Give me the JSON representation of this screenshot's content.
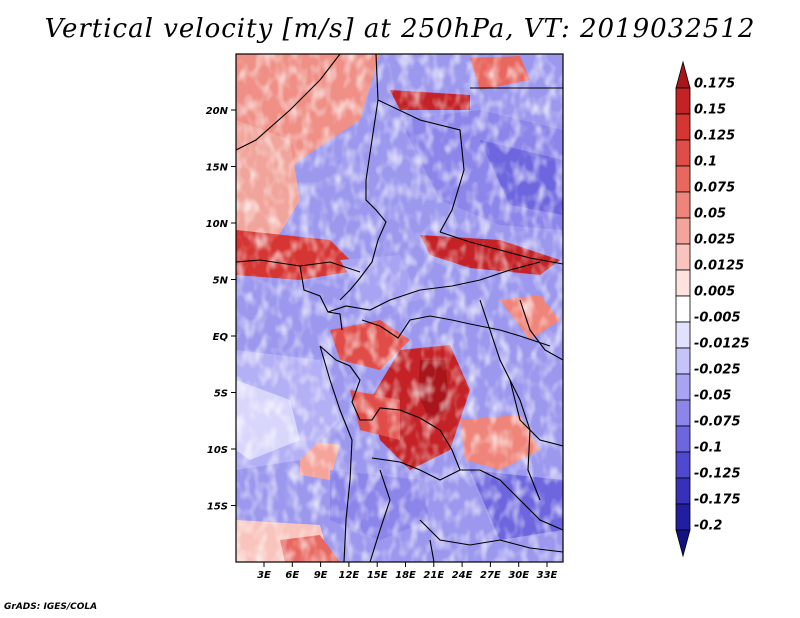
{
  "title": "Vertical velocity [m/s] at 250hPa, VT: 2019032512",
  "credit": "GrADS: IGES/COLA",
  "map": {
    "lat_labels": [
      "20N",
      "15N",
      "10N",
      "5N",
      "EQ",
      "5S",
      "10S",
      "15S"
    ],
    "lon_labels": [
      "3E",
      "6E",
      "9E",
      "12E",
      "15E",
      "18E",
      "21E",
      "24E",
      "27E",
      "30E",
      "33E"
    ]
  },
  "colorbar": {
    "levels": [
      "0.175",
      "0.15",
      "0.125",
      "0.1",
      "0.075",
      "0.05",
      "0.025",
      "0.0125",
      "0.005",
      "-0.005",
      "-0.0125",
      "-0.025",
      "-0.05",
      "-0.075",
      "-0.1",
      "-0.125",
      "-0.175",
      "-0.2"
    ],
    "colors": [
      "#a8161c",
      "#c42226",
      "#d63633",
      "#e04c47",
      "#e8675f",
      "#ef847a",
      "#f5a49b",
      "#f9c4bd",
      "#fde2de",
      "#ffffff",
      "#e1e0fd",
      "#c6c3f8",
      "#a9a4f2",
      "#8c85ea",
      "#6d66df",
      "#4f49cf",
      "#3731b9",
      "#221ea0",
      "#131282"
    ]
  }
}
